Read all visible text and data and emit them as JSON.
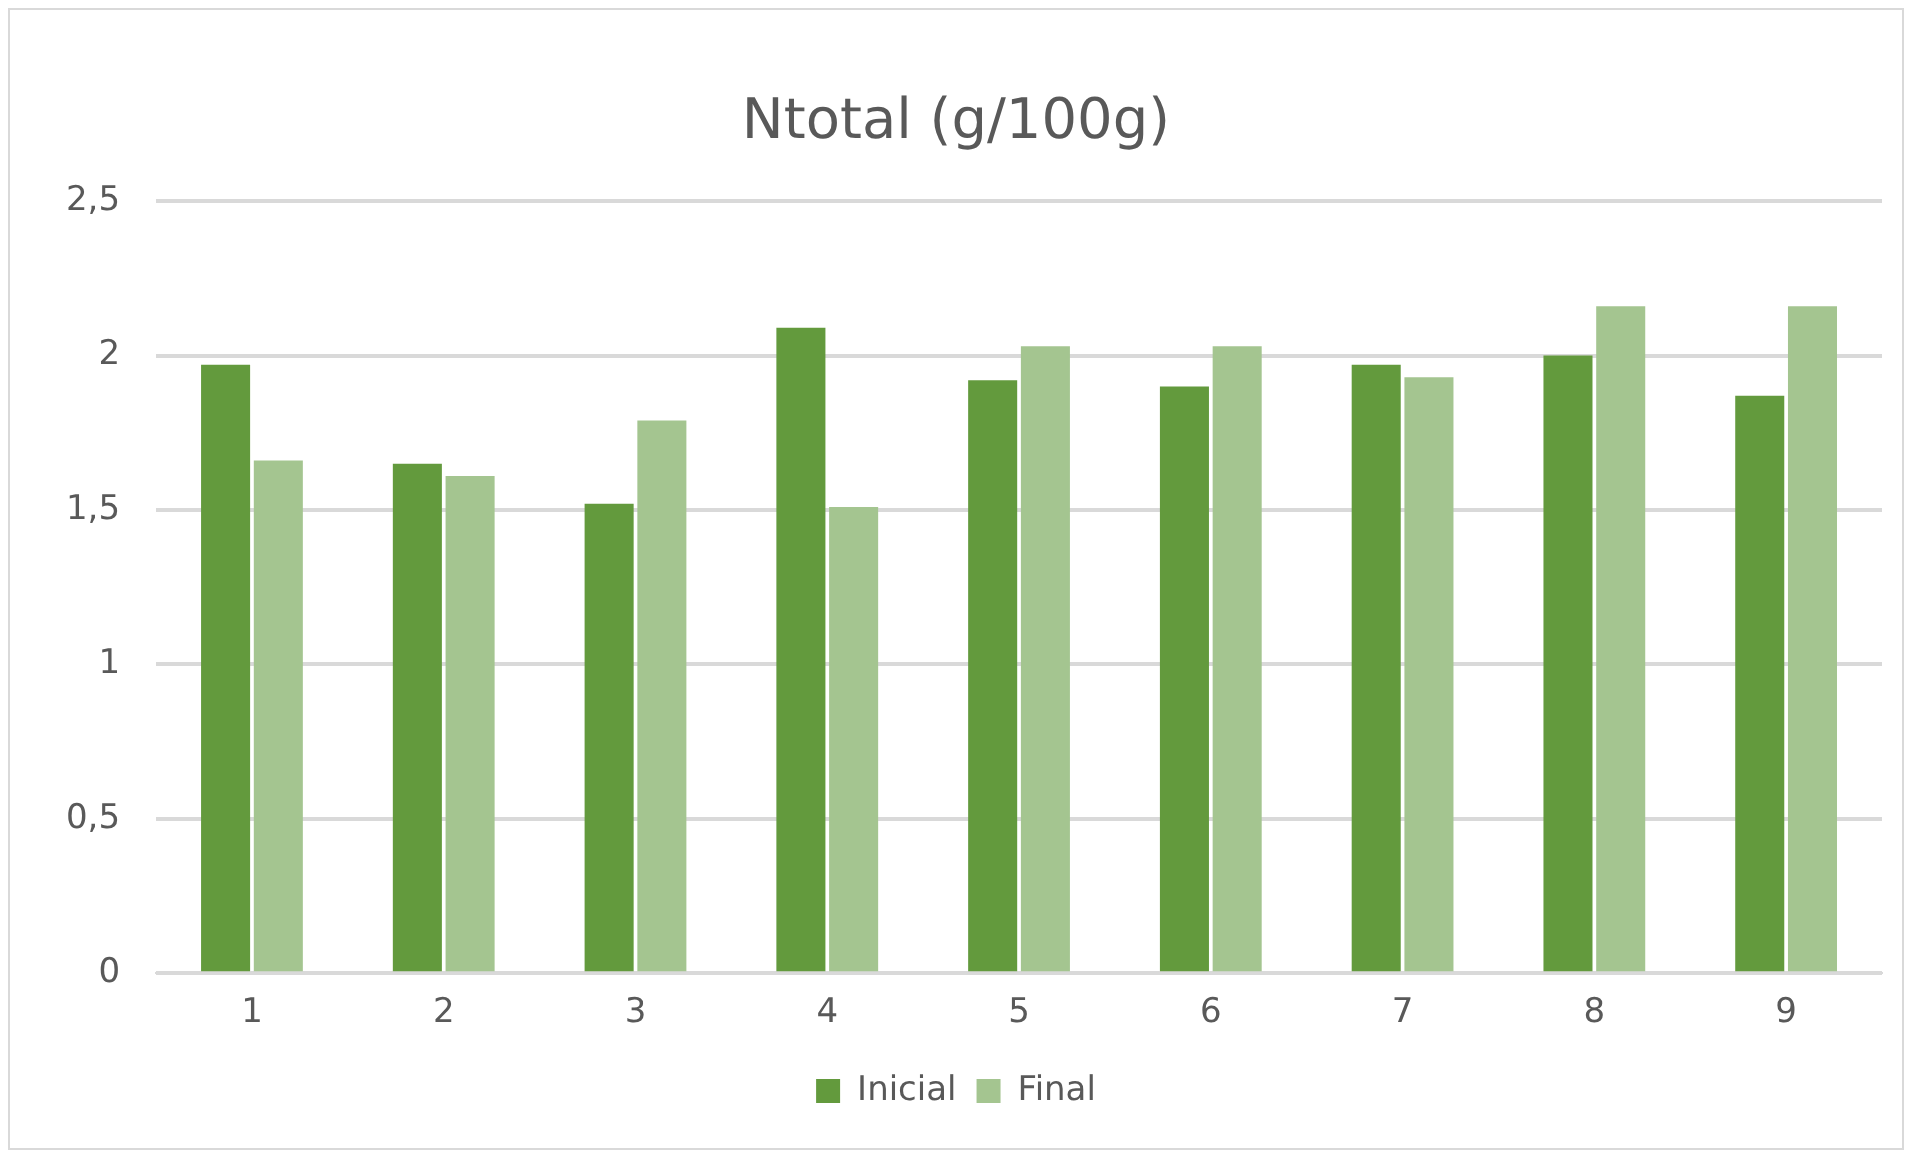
{
  "chart_data": {
    "type": "bar",
    "title": "Ntotal (g/100g)",
    "categories": [
      "1",
      "2",
      "3",
      "4",
      "5",
      "6",
      "7",
      "8",
      "9"
    ],
    "series": [
      {
        "name": "Inicial",
        "color": "#639a3d",
        "values": [
          1.97,
          1.65,
          1.52,
          2.09,
          1.92,
          1.9,
          1.97,
          2.0,
          1.87
        ]
      },
      {
        "name": "Final",
        "color": "#a4c590",
        "values": [
          1.66,
          1.61,
          1.79,
          1.51,
          2.03,
          2.03,
          1.93,
          2.16,
          2.16
        ]
      }
    ],
    "ylim": [
      0,
      2.5
    ],
    "yticks": [
      0,
      {
        "value": 0.5,
        "label": "0,5"
      },
      1,
      {
        "value": 1.5,
        "label": "1,5"
      },
      2,
      {
        "value": 2.5,
        "label": "2,5"
      }
    ],
    "grid": "y",
    "legend": "bottom"
  }
}
